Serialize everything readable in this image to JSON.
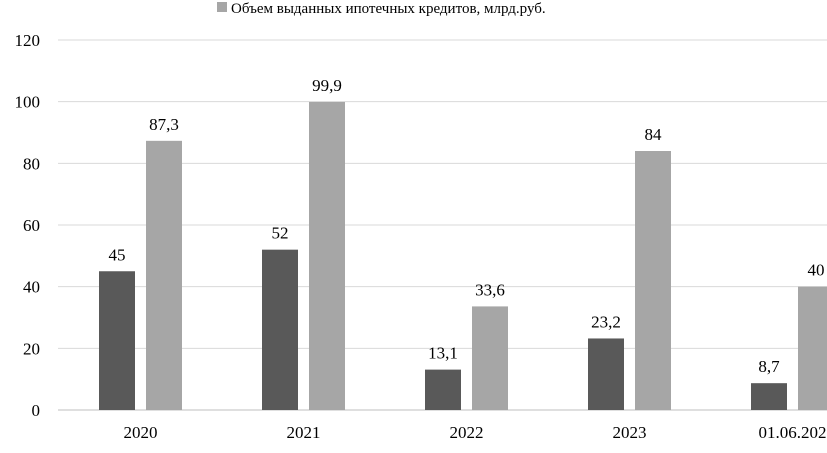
{
  "chart_data": {
    "type": "bar",
    "categories": [
      "2020",
      "2021",
      "2022",
      "2023",
      "01.06.202"
    ],
    "series": [
      {
        "values": [
          45,
          52,
          13.1,
          23.2,
          8.7
        ],
        "labels": [
          "45",
          "52",
          "13,1",
          "23,2",
          "8,7"
        ],
        "color": "#595959"
      },
      {
        "name": "Объем выданных ипотечных кредитов, млрд.руб.",
        "values": [
          87.3,
          99.9,
          33.6,
          84,
          40
        ],
        "labels": [
          "87,3",
          "99,9",
          "33,6",
          "84",
          "40"
        ],
        "color": "#a6a6a6"
      }
    ],
    "ylim": [
      0,
      120
    ],
    "yticks": [
      "0",
      "20",
      "40",
      "60",
      "80",
      "100",
      "120"
    ],
    "gridlines": true,
    "legend_position": "top"
  }
}
